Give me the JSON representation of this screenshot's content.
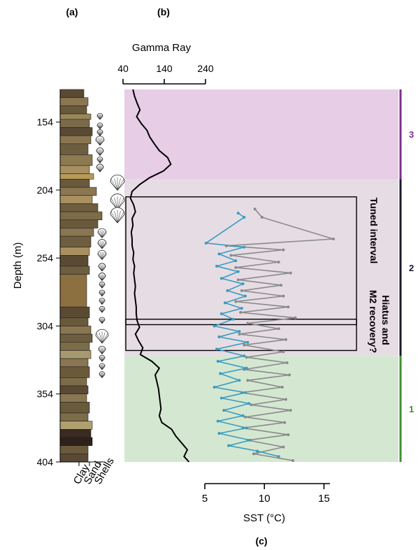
{
  "panels": {
    "a": "(a)",
    "b": "(b)",
    "c": "(c)"
  },
  "chart_data": {
    "type": "line",
    "depth_axis": {
      "label": "Depth (m)",
      "ticks": [
        154,
        204,
        254,
        304,
        354,
        404
      ],
      "range": [
        130,
        404
      ]
    },
    "gamma_ray": {
      "title": "Gamma Ray",
      "ticks": [
        40,
        140,
        240
      ],
      "range": [
        40,
        240
      ],
      "series": [
        {
          "depth": 130,
          "value": 64
        },
        {
          "depth": 135,
          "value": 68
        },
        {
          "depth": 140,
          "value": 74
        },
        {
          "depth": 145,
          "value": 81
        },
        {
          "depth": 150,
          "value": 73
        },
        {
          "depth": 155,
          "value": 84
        },
        {
          "depth": 160,
          "value": 98
        },
        {
          "depth": 165,
          "value": 105
        },
        {
          "depth": 170,
          "value": 116
        },
        {
          "depth": 175,
          "value": 128
        },
        {
          "depth": 180,
          "value": 148
        },
        {
          "depth": 185,
          "value": 156
        },
        {
          "depth": 190,
          "value": 138
        },
        {
          "depth": 195,
          "value": 104
        },
        {
          "depth": 200,
          "value": 80
        },
        {
          "depth": 205,
          "value": 62
        },
        {
          "depth": 210,
          "value": 58
        },
        {
          "depth": 215,
          "value": 66
        },
        {
          "depth": 220,
          "value": 70
        },
        {
          "depth": 225,
          "value": 62
        },
        {
          "depth": 230,
          "value": 64
        },
        {
          "depth": 235,
          "value": 60
        },
        {
          "depth": 240,
          "value": 62
        },
        {
          "depth": 245,
          "value": 62
        },
        {
          "depth": 250,
          "value": 66
        },
        {
          "depth": 255,
          "value": 64
        },
        {
          "depth": 260,
          "value": 68
        },
        {
          "depth": 265,
          "value": 66
        },
        {
          "depth": 270,
          "value": 68
        },
        {
          "depth": 275,
          "value": 70
        },
        {
          "depth": 280,
          "value": 68
        },
        {
          "depth": 285,
          "value": 70
        },
        {
          "depth": 290,
          "value": 72
        },
        {
          "depth": 295,
          "value": 72
        },
        {
          "depth": 300,
          "value": 74
        },
        {
          "depth": 305,
          "value": 80
        },
        {
          "depth": 310,
          "value": 70
        },
        {
          "depth": 315,
          "value": 78
        },
        {
          "depth": 320,
          "value": 88
        },
        {
          "depth": 325,
          "value": 82
        },
        {
          "depth": 330,
          "value": 110
        },
        {
          "depth": 335,
          "value": 128
        },
        {
          "depth": 340,
          "value": 118
        },
        {
          "depth": 345,
          "value": 122
        },
        {
          "depth": 350,
          "value": 126
        },
        {
          "depth": 355,
          "value": 128
        },
        {
          "depth": 360,
          "value": 130
        },
        {
          "depth": 365,
          "value": 132
        },
        {
          "depth": 370,
          "value": 128
        },
        {
          "depth": 375,
          "value": 134
        },
        {
          "depth": 380,
          "value": 158
        },
        {
          "depth": 385,
          "value": 168
        },
        {
          "depth": 390,
          "value": 182
        },
        {
          "depth": 395,
          "value": 196
        },
        {
          "depth": 400,
          "value": 188
        },
        {
          "depth": 404,
          "value": 200
        }
      ]
    },
    "sst": {
      "xlabel": "SST (°C)",
      "ticks": [
        5,
        10,
        15
      ],
      "range": [
        5,
        15.5
      ],
      "series": [
        {
          "name": "",
          "color": "#3a9bbf",
          "points": [
            {
              "depth": 221,
              "sst": 7.8
            },
            {
              "depth": 224,
              "sst": 8.3
            },
            {
              "depth": 243,
              "sst": 5.1
            },
            {
              "depth": 246,
              "sst": 8.3
            },
            {
              "depth": 251,
              "sst": 6.2
            },
            {
              "depth": 256,
              "sst": 7.6
            },
            {
              "depth": 260,
              "sst": 6.0
            },
            {
              "depth": 264,
              "sst": 7.8
            },
            {
              "depth": 269,
              "sst": 6.4
            },
            {
              "depth": 273,
              "sst": 8.2
            },
            {
              "depth": 278,
              "sst": 6.9
            },
            {
              "depth": 282,
              "sst": 8.4
            },
            {
              "depth": 287,
              "sst": 6.7
            },
            {
              "depth": 291,
              "sst": 8.1
            },
            {
              "depth": 295,
              "sst": 6.4
            },
            {
              "depth": 299,
              "sst": 7.4
            },
            {
              "depth": 304,
              "sst": 5.8
            },
            {
              "depth": 308,
              "sst": 7.9
            },
            {
              "depth": 312,
              "sst": 6.2
            },
            {
              "depth": 316,
              "sst": 8.6
            },
            {
              "depth": 321,
              "sst": 6.0
            },
            {
              "depth": 326,
              "sst": 8.3
            },
            {
              "depth": 330,
              "sst": 6.1
            },
            {
              "depth": 335,
              "sst": 8.5
            },
            {
              "depth": 339,
              "sst": 6.3
            },
            {
              "depth": 344,
              "sst": 7.9
            },
            {
              "depth": 349,
              "sst": 5.8
            },
            {
              "depth": 353,
              "sst": 8.4
            },
            {
              "depth": 357,
              "sst": 6.4
            },
            {
              "depth": 361,
              "sst": 8.7
            },
            {
              "depth": 366,
              "sst": 6.6
            },
            {
              "depth": 370,
              "sst": 8.2
            },
            {
              "depth": 374,
              "sst": 6.1
            },
            {
              "depth": 379,
              "sst": 8.5
            },
            {
              "depth": 383,
              "sst": 6.2
            },
            {
              "depth": 388,
              "sst": 8.8
            },
            {
              "depth": 392,
              "sst": 7.0
            },
            {
              "depth": 396,
              "sst": 9.4
            },
            {
              "depth": 400,
              "sst": 11.2
            }
          ]
        },
        {
          "name": "",
          "color": "#8a8a8a",
          "points": [
            {
              "depth": 218,
              "sst": 9.2
            },
            {
              "depth": 224,
              "sst": 9.8
            },
            {
              "depth": 240,
              "sst": 15.8
            },
            {
              "depth": 245,
              "sst": 6.8
            },
            {
              "depth": 248,
              "sst": 11.6
            },
            {
              "depth": 252,
              "sst": 7.2
            },
            {
              "depth": 257,
              "sst": 11.2
            },
            {
              "depth": 261,
              "sst": 7.6
            },
            {
              "depth": 265,
              "sst": 12.2
            },
            {
              "depth": 270,
              "sst": 7.8
            },
            {
              "depth": 274,
              "sst": 11.4
            },
            {
              "depth": 278,
              "sst": 8.1
            },
            {
              "depth": 282,
              "sst": 11.6
            },
            {
              "depth": 286,
              "sst": 7.6
            },
            {
              "depth": 290,
              "sst": 12.0
            },
            {
              "depth": 294,
              "sst": 8.0
            },
            {
              "depth": 298,
              "sst": 12.6
            },
            {
              "depth": 302,
              "sst": 8.6
            },
            {
              "depth": 306,
              "sst": 11.2
            },
            {
              "depth": 310,
              "sst": 7.9
            },
            {
              "depth": 314,
              "sst": 11.8
            },
            {
              "depth": 318,
              "sst": 8.3
            },
            {
              "depth": 323,
              "sst": 11.6
            },
            {
              "depth": 327,
              "sst": 8.5
            },
            {
              "depth": 331,
              "sst": 11.9
            },
            {
              "depth": 336,
              "sst": 8.3
            },
            {
              "depth": 340,
              "sst": 12.1
            },
            {
              "depth": 344,
              "sst": 8.6
            },
            {
              "depth": 349,
              "sst": 11.5
            },
            {
              "depth": 353,
              "sst": 8.1
            },
            {
              "depth": 358,
              "sst": 11.8
            },
            {
              "depth": 362,
              "sst": 8.9
            },
            {
              "depth": 366,
              "sst": 12.2
            },
            {
              "depth": 371,
              "sst": 8.4
            },
            {
              "depth": 375,
              "sst": 11.7
            },
            {
              "depth": 379,
              "sst": 8.2
            },
            {
              "depth": 384,
              "sst": 12.0
            },
            {
              "depth": 388,
              "sst": 8.6
            },
            {
              "depth": 393,
              "sst": 11.6
            },
            {
              "depth": 398,
              "sst": 9.1
            },
            {
              "depth": 403,
              "sst": 12.4
            }
          ]
        }
      ]
    },
    "zones": [
      {
        "label": "3",
        "color": "#7a2f8f",
        "fill": "#e7cde6",
        "top": 130,
        "bottom": 196
      },
      {
        "label": "2",
        "color": "#1a1a2a",
        "fill": "#e6dde4",
        "top": 196,
        "bottom": 326
      },
      {
        "label": "1",
        "color": "#3f8f2f",
        "fill": "#d4e8d1",
        "top": 326,
        "bottom": 404
      }
    ],
    "annotations": [
      {
        "text": "Tuned interval",
        "top": 209,
        "bottom": 303
      },
      {
        "text": "Hiatus and M2 recovery?",
        "top": 299,
        "bottom": 322
      }
    ],
    "lithology_legend": [
      "Clay",
      "Sand",
      "Shells"
    ]
  }
}
